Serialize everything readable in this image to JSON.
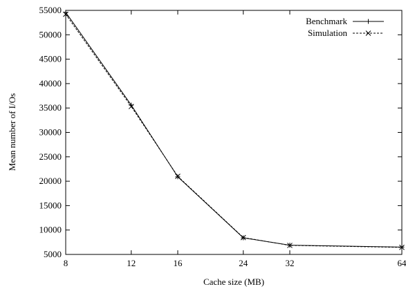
{
  "chart_data": {
    "type": "line",
    "title": "",
    "xlabel": "Cache size (MB)",
    "ylabel": "Mean number of I/Os",
    "x_scale": "log2",
    "xlim": [
      8,
      64
    ],
    "ylim": [
      5000,
      55000
    ],
    "x": [
      8,
      12,
      16,
      24,
      32,
      64
    ],
    "x_ticks": [
      "8",
      "12",
      "16",
      "24",
      "32",
      "64"
    ],
    "y_ticks": [
      "5000",
      "10000",
      "15000",
      "20000",
      "25000",
      "30000",
      "35000",
      "40000",
      "45000",
      "50000",
      "55000"
    ],
    "y_tick_values": [
      5000,
      10000,
      15000,
      20000,
      25000,
      30000,
      35000,
      40000,
      45000,
      50000,
      55000
    ],
    "grid": false,
    "legend_position": "top-right",
    "series": [
      {
        "name": "Benchmark",
        "marker": "plus",
        "dash": "solid",
        "values": [
          54600,
          35600,
          20900,
          8400,
          6900,
          6500
        ]
      },
      {
        "name": "Simulation",
        "marker": "cross",
        "dash": "dashed",
        "values": [
          54200,
          35300,
          21000,
          8450,
          6850,
          6450
        ]
      }
    ]
  }
}
